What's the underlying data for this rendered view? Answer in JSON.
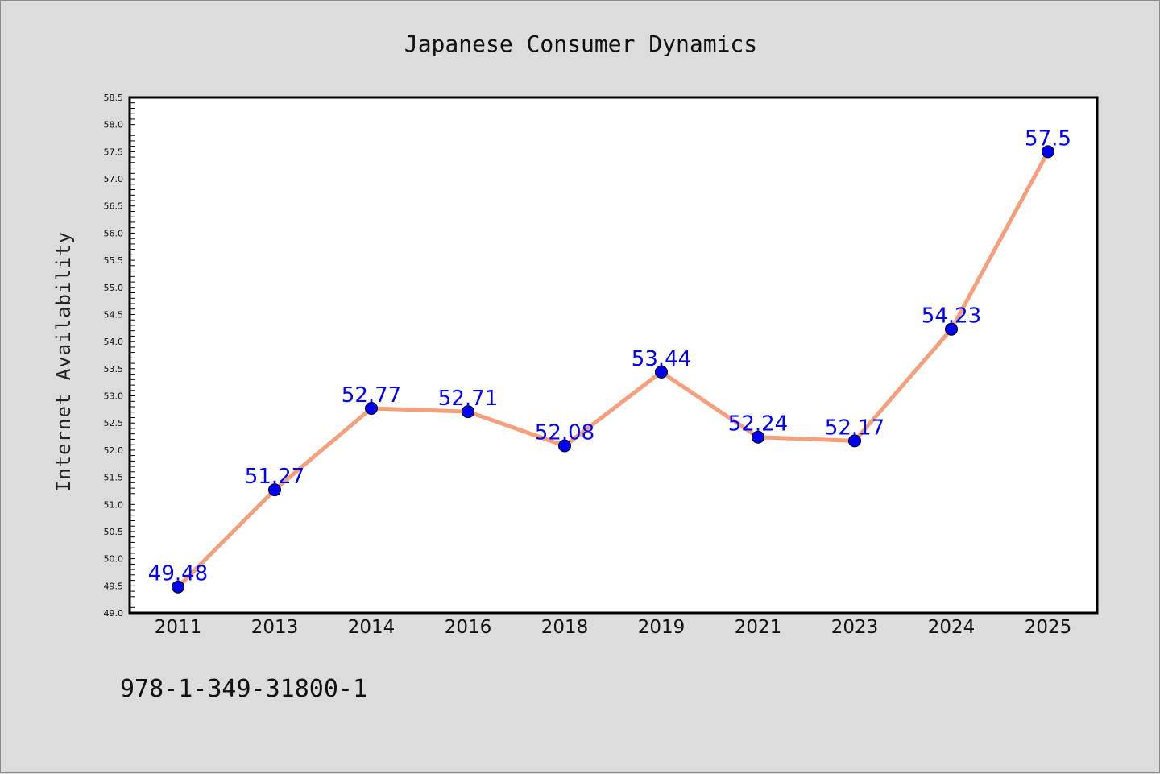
{
  "chart_data": {
    "type": "line",
    "title": "Japanese Consumer Dynamics",
    "xlabel": "",
    "ylabel": "Internet Availability",
    "categories": [
      "2011",
      "2013",
      "2014",
      "2016",
      "2018",
      "2019",
      "2021",
      "2023",
      "2024",
      "2025"
    ],
    "values": [
      49.48,
      51.27,
      52.77,
      52.71,
      52.08,
      53.44,
      52.24,
      52.17,
      54.23,
      57.5
    ],
    "data_labels": [
      "49.48",
      "51.27",
      "52.77",
      "52.71",
      "52.08",
      "53.44",
      "52.24",
      "52.17",
      "54.23",
      "57.5"
    ],
    "ylim": [
      49.0,
      58.5
    ],
    "yticks": [
      "49.0",
      "49.5",
      "50.0",
      "50.5",
      "51.0",
      "51.5",
      "52.0",
      "52.5",
      "53.0",
      "53.5",
      "54.0",
      "54.5",
      "55.0",
      "55.5",
      "56.0",
      "56.5",
      "57.0",
      "57.5",
      "58.0",
      "58.5"
    ],
    "grid": false,
    "legend": "none",
    "line_color": "#f4a07c",
    "marker_color": "#0000ee",
    "label_color": "#0000ff",
    "background": "#dcdcdc",
    "plot_background": "#ffffff"
  },
  "footer_code": "978-1-349-31800-1"
}
